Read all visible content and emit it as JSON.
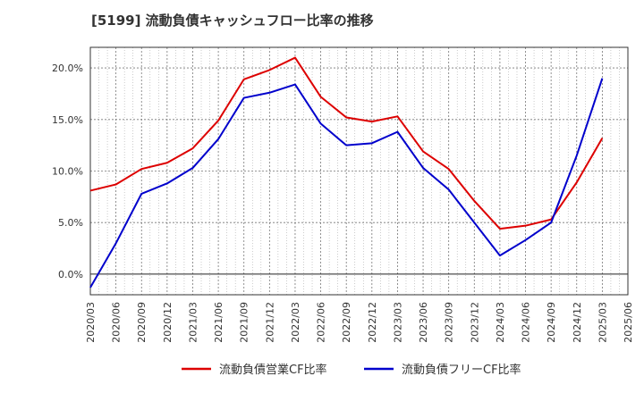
{
  "chart_data": {
    "type": "line",
    "title": "[5199]  流動負債キャッシュフロー比率の推移",
    "xlabel": "",
    "ylabel": "",
    "categories": [
      "2020/03",
      "2020/06",
      "2020/09",
      "2020/12",
      "2021/03",
      "2021/06",
      "2021/09",
      "2021/12",
      "2022/03",
      "2022/06",
      "2022/09",
      "2022/12",
      "2023/03",
      "2023/06",
      "2023/09",
      "2023/12",
      "2024/03",
      "2024/06",
      "2024/09",
      "2024/12",
      "2025/03",
      "2025/06"
    ],
    "series": [
      {
        "name": "流動負債営業CF比率",
        "color": "#dd0000",
        "values": [
          8.1,
          8.7,
          10.2,
          10.8,
          12.2,
          14.9,
          18.9,
          19.8,
          21.0,
          17.2,
          15.2,
          14.8,
          15.3,
          11.9,
          10.2,
          7.1,
          4.4,
          4.7,
          5.3,
          8.9,
          13.2,
          null
        ]
      },
      {
        "name": "流動負債フリーCF比率",
        "color": "#0000cc",
        "values": [
          -1.3,
          3.0,
          7.8,
          8.8,
          10.3,
          13.1,
          17.1,
          17.6,
          18.4,
          14.6,
          12.5,
          12.7,
          13.8,
          10.3,
          8.2,
          5.0,
          1.8,
          3.3,
          5.0,
          11.5,
          19.0,
          null
        ]
      }
    ],
    "ylim": [
      -2.0,
      22.0
    ],
    "yticks": [
      0,
      5,
      10,
      15,
      20
    ],
    "ytick_labels": [
      "0.0%",
      "5.0%",
      "10.0%",
      "15.0%",
      "20.0%"
    ],
    "grid": true,
    "legend_position": "bottom"
  }
}
